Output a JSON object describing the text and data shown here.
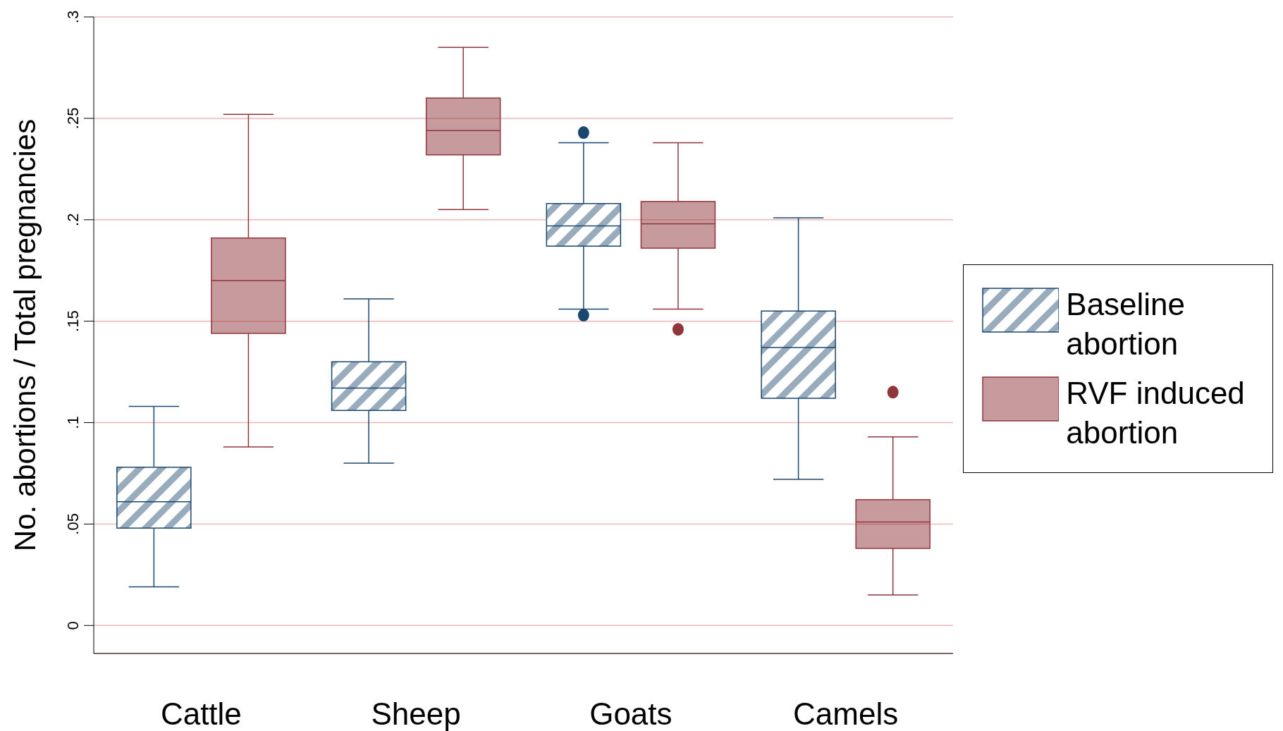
{
  "chart_data": {
    "type": "box",
    "ylabel": "No. abortions / Total pregnancies",
    "categories": [
      "Cattle",
      "Sheep",
      "Goats",
      "Camels"
    ],
    "ylim": [
      -0.0138,
      0.3
    ],
    "yticks": [
      {
        "value": 0,
        "label": "0"
      },
      {
        "value": 0.05,
        "label": ".05"
      },
      {
        "value": 0.1,
        "label": ".1"
      },
      {
        "value": 0.15,
        "label": ".15"
      },
      {
        "value": 0.2,
        "label": ".2"
      },
      {
        "value": 0.25,
        "label": ".25"
      },
      {
        "value": 0.3,
        "label": ".3"
      }
    ],
    "grid": "y",
    "legend": "right",
    "series": [
      {
        "name": "Baseline abortion",
        "color": "#1a476f",
        "boxes": [
          {
            "low": 0.019,
            "q1": 0.048,
            "median": 0.061,
            "q3": 0.078,
            "high": 0.108
          },
          {
            "low": 0.08,
            "q1": 0.106,
            "median": 0.117,
            "q3": 0.13,
            "high": 0.161
          },
          {
            "low": 0.156,
            "q1": 0.187,
            "median": 0.197,
            "q3": 0.208,
            "high": 0.238,
            "outliers": [
              0.243,
              0.153
            ]
          },
          {
            "low": 0.072,
            "q1": 0.112,
            "median": 0.137,
            "q3": 0.155,
            "high": 0.201
          }
        ]
      },
      {
        "name": "RVF induced abortion",
        "color": "#90353b",
        "boxes": [
          {
            "low": 0.088,
            "q1": 0.144,
            "median": 0.17,
            "q3": 0.191,
            "high": 0.252
          },
          {
            "low": 0.205,
            "q1": 0.232,
            "median": 0.244,
            "q3": 0.26,
            "high": 0.285
          },
          {
            "low": 0.156,
            "q1": 0.186,
            "median": 0.198,
            "q3": 0.209,
            "high": 0.238,
            "outliers": [
              0.146
            ]
          },
          {
            "low": 0.015,
            "q1": 0.038,
            "median": 0.051,
            "q3": 0.062,
            "high": 0.093,
            "outliers": [
              0.115
            ]
          }
        ]
      }
    ]
  }
}
